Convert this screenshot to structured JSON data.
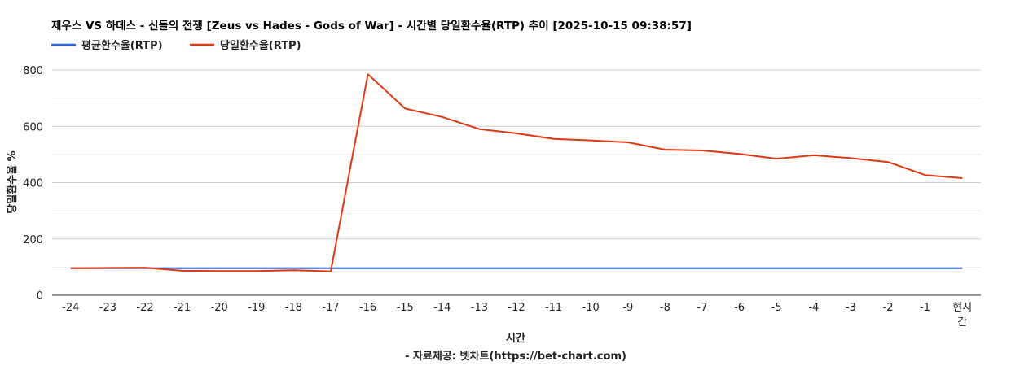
{
  "chart_data": {
    "type": "line",
    "title": "제우스 VS 하데스 - 신들의 전쟁 [Zeus vs Hades - Gods of War] - 시간별 당일환수율(RTP) 추이 [2025-10-15 09:38:57]",
    "xlabel": "시간",
    "ylabel": "당일환수율 %",
    "credit": "- 자료제공: 벳차트(https://bet-chart.com)",
    "legend_position": "top-left",
    "grid": true,
    "ylim": [
      0,
      800
    ],
    "y_ticks": [
      "0",
      "200",
      "400",
      "600",
      "800"
    ],
    "categories": [
      "-24",
      "-23",
      "-22",
      "-21",
      "-20",
      "-19",
      "-18",
      "-17",
      "-16",
      "-15",
      "-14",
      "-13",
      "-12",
      "-11",
      "-10",
      "-9",
      "-8",
      "-7",
      "-6",
      "-5",
      "-4",
      "-3",
      "-2",
      "-1",
      "현시간"
    ],
    "series": [
      {
        "name": "평균환수율(RTP)",
        "color": "#3366cc",
        "values": [
          96,
          96,
          96,
          96,
          96,
          96,
          96,
          96,
          96,
          96,
          96,
          96,
          96,
          96,
          96,
          96,
          96,
          96,
          96,
          96,
          96,
          96,
          96,
          96,
          96
        ]
      },
      {
        "name": "당일환수율(RTP)",
        "color": "#dc3912",
        "values": [
          96,
          97,
          98,
          87,
          86,
          86,
          89,
          85,
          785,
          663,
          633,
          590,
          575,
          555,
          550,
          543,
          517,
          514,
          502,
          485,
          497,
          487,
          473,
          427,
          416
        ]
      }
    ]
  }
}
